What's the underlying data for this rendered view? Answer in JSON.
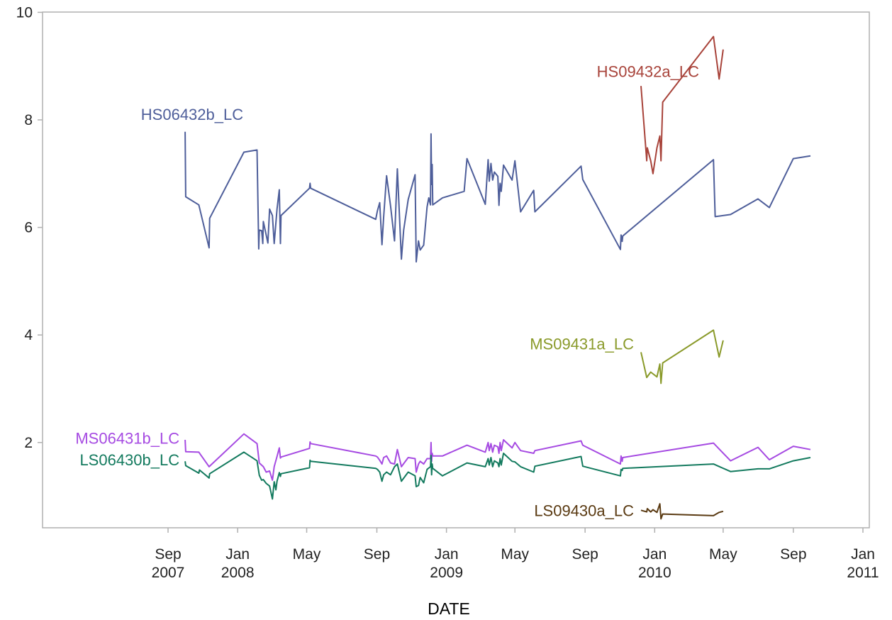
{
  "chart_data": {
    "type": "line",
    "title": "",
    "xlabel": "DATE",
    "ylabel": "",
    "xlim": [
      "2007-06-01",
      "2011-01-01"
    ],
    "ylim": [
      0,
      10
    ],
    "grid": false,
    "legend": "none",
    "x_ticks": [
      {
        "date": "2007-09-01",
        "line1": "Sep",
        "line2": "2007"
      },
      {
        "date": "2008-01-01",
        "line1": "Jan",
        "line2": "2008"
      },
      {
        "date": "2008-05-01",
        "line1": "May",
        "line2": ""
      },
      {
        "date": "2008-09-01",
        "line1": "Sep",
        "line2": ""
      },
      {
        "date": "2009-01-01",
        "line1": "Jan",
        "line2": "2009"
      },
      {
        "date": "2009-05-01",
        "line1": "May",
        "line2": ""
      },
      {
        "date": "2009-09-01",
        "line1": "Sep",
        "line2": ""
      },
      {
        "date": "2010-01-01",
        "line1": "Jan",
        "line2": "2010"
      },
      {
        "date": "2010-05-01",
        "line1": "May",
        "line2": ""
      },
      {
        "date": "2010-09-01",
        "line1": "Sep",
        "line2": ""
      },
      {
        "date": "2011-01-01",
        "line1": "Jan",
        "line2": "2011"
      }
    ],
    "y_ticks": [
      2,
      4,
      6,
      8,
      10
    ],
    "series": [
      {
        "name": "HS06432b_LC",
        "color": "#4e5e9a",
        "points": [
          [
            "2007-10-01",
            7.78
          ],
          [
            "2007-10-02",
            6.57
          ],
          [
            "2007-10-25",
            6.42
          ],
          [
            "2007-11-12",
            5.62
          ],
          [
            "2007-11-13",
            6.17
          ],
          [
            "2008-01-12",
            7.4
          ],
          [
            "2008-02-04",
            7.44
          ],
          [
            "2008-02-07",
            5.6
          ],
          [
            "2008-02-08",
            5.95
          ],
          [
            "2008-02-12",
            5.94
          ],
          [
            "2008-02-14",
            5.7
          ],
          [
            "2008-02-15",
            6.11
          ],
          [
            "2008-02-19",
            5.91
          ],
          [
            "2008-02-23",
            5.71
          ],
          [
            "2008-02-26",
            6.34
          ],
          [
            "2008-03-02",
            6.22
          ],
          [
            "2008-03-05",
            5.7
          ],
          [
            "2008-03-10",
            6.34
          ],
          [
            "2008-03-14",
            6.7
          ],
          [
            "2008-03-16",
            5.7
          ],
          [
            "2008-03-17",
            6.22
          ],
          [
            "2008-05-06",
            6.73
          ],
          [
            "2008-05-07",
            6.82
          ],
          [
            "2008-05-08",
            6.73
          ],
          [
            "2008-08-30",
            6.15
          ],
          [
            "2008-09-02",
            6.31
          ],
          [
            "2008-09-06",
            6.46
          ],
          [
            "2008-09-10",
            5.68
          ],
          [
            "2008-09-13",
            6.2
          ],
          [
            "2008-09-18",
            6.96
          ],
          [
            "2008-09-25",
            6.4
          ],
          [
            "2008-10-02",
            5.75
          ],
          [
            "2008-10-07",
            7.09
          ],
          [
            "2008-10-14",
            5.41
          ],
          [
            "2008-10-18",
            5.95
          ],
          [
            "2008-10-26",
            6.52
          ],
          [
            "2008-11-07",
            6.98
          ],
          [
            "2008-11-09",
            5.36
          ],
          [
            "2008-11-13",
            5.75
          ],
          [
            "2008-11-16",
            5.58
          ],
          [
            "2008-11-22",
            5.67
          ],
          [
            "2008-11-28",
            6.38
          ],
          [
            "2008-12-01",
            6.55
          ],
          [
            "2008-12-04",
            6.42
          ],
          [
            "2008-12-05",
            7.74
          ],
          [
            "2008-12-06",
            6.8
          ],
          [
            "2008-12-07",
            7.17
          ],
          [
            "2008-12-08",
            6.42
          ],
          [
            "2008-12-25",
            6.55
          ],
          [
            "2009-02-01",
            6.67
          ],
          [
            "2009-02-06",
            7.28
          ],
          [
            "2009-03-10",
            6.43
          ],
          [
            "2009-03-15",
            7.26
          ],
          [
            "2009-03-17",
            6.86
          ],
          [
            "2009-03-20",
            7.19
          ],
          [
            "2009-03-23",
            6.88
          ],
          [
            "2009-03-26",
            7.03
          ],
          [
            "2009-04-01",
            6.95
          ],
          [
            "2009-04-03",
            6.41
          ],
          [
            "2009-04-05",
            6.82
          ],
          [
            "2009-04-07",
            6.67
          ],
          [
            "2009-04-11",
            7.16
          ],
          [
            "2009-04-26",
            6.88
          ],
          [
            "2009-05-01",
            7.24
          ],
          [
            "2009-05-11",
            6.29
          ],
          [
            "2009-06-03",
            6.69
          ],
          [
            "2009-06-05",
            6.29
          ],
          [
            "2009-08-25",
            7.14
          ],
          [
            "2009-08-28",
            6.89
          ],
          [
            "2009-11-02",
            5.59
          ],
          [
            "2009-11-03",
            5.86
          ],
          [
            "2009-11-05",
            5.74
          ],
          [
            "2009-11-06",
            5.84
          ],
          [
            "2010-04-14",
            7.26
          ],
          [
            "2010-04-17",
            6.2
          ],
          [
            "2010-05-14",
            6.24
          ],
          [
            "2010-07-01",
            6.53
          ],
          [
            "2010-07-21",
            6.37
          ],
          [
            "2010-09-01",
            7.28
          ],
          [
            "2010-10-01",
            7.33
          ]
        ]
      },
      {
        "name": "HS09432a_LC",
        "color": "#a8433a",
        "points": [
          [
            "2009-12-08",
            8.63
          ],
          [
            "2009-12-18",
            7.24
          ],
          [
            "2009-12-19",
            7.48
          ],
          [
            "2009-12-25",
            7.24
          ],
          [
            "2009-12-29",
            7.0
          ],
          [
            "2010-01-05",
            7.48
          ],
          [
            "2010-01-10",
            7.7
          ],
          [
            "2010-01-12",
            7.24
          ],
          [
            "2010-01-15",
            8.33
          ],
          [
            "2010-04-14",
            9.55
          ],
          [
            "2010-04-24",
            8.76
          ],
          [
            "2010-05-01",
            9.31
          ]
        ]
      },
      {
        "name": "MS09431a_LC",
        "color": "#8a9a2a",
        "points": [
          [
            "2009-12-08",
            3.68
          ],
          [
            "2009-12-18",
            3.21
          ],
          [
            "2009-12-25",
            3.31
          ],
          [
            "2010-01-05",
            3.22
          ],
          [
            "2010-01-10",
            3.46
          ],
          [
            "2010-01-12",
            3.1
          ],
          [
            "2010-01-15",
            3.48
          ],
          [
            "2010-04-14",
            4.09
          ],
          [
            "2010-04-24",
            3.59
          ],
          [
            "2010-05-01",
            3.9
          ]
        ]
      },
      {
        "name": "MS06431b_LC",
        "color": "#a64be2",
        "points": [
          [
            "2007-10-01",
            2.05
          ],
          [
            "2007-10-02",
            1.83
          ],
          [
            "2007-10-25",
            1.82
          ],
          [
            "2007-11-12",
            1.55
          ],
          [
            "2008-01-12",
            2.16
          ],
          [
            "2008-02-04",
            1.98
          ],
          [
            "2008-02-08",
            1.62
          ],
          [
            "2008-02-15",
            1.55
          ],
          [
            "2008-02-20",
            1.45
          ],
          [
            "2008-02-26",
            1.47
          ],
          [
            "2008-03-02",
            1.3
          ],
          [
            "2008-03-05",
            1.55
          ],
          [
            "2008-03-10",
            1.74
          ],
          [
            "2008-03-14",
            1.9
          ],
          [
            "2008-03-16",
            1.71
          ],
          [
            "2008-03-17",
            1.73
          ],
          [
            "2008-05-06",
            1.89
          ],
          [
            "2008-05-07",
            2.01
          ],
          [
            "2008-05-08",
            1.98
          ],
          [
            "2008-08-30",
            1.75
          ],
          [
            "2008-09-02",
            1.73
          ],
          [
            "2008-09-06",
            1.67
          ],
          [
            "2008-09-10",
            1.6
          ],
          [
            "2008-09-13",
            1.72
          ],
          [
            "2008-09-18",
            1.75
          ],
          [
            "2008-09-25",
            1.62
          ],
          [
            "2008-10-02",
            1.6
          ],
          [
            "2008-10-07",
            1.87
          ],
          [
            "2008-10-14",
            1.55
          ],
          [
            "2008-10-26",
            1.72
          ],
          [
            "2008-11-07",
            1.7
          ],
          [
            "2008-11-09",
            1.45
          ],
          [
            "2008-11-13",
            1.6
          ],
          [
            "2008-11-16",
            1.65
          ],
          [
            "2008-11-22",
            1.6
          ],
          [
            "2008-11-28",
            1.7
          ],
          [
            "2008-12-04",
            1.7
          ],
          [
            "2008-12-05",
            2.0
          ],
          [
            "2008-12-06",
            1.65
          ],
          [
            "2008-12-07",
            1.8
          ],
          [
            "2008-12-08",
            1.75
          ],
          [
            "2008-12-25",
            1.75
          ],
          [
            "2009-02-06",
            1.95
          ],
          [
            "2009-03-10",
            1.82
          ],
          [
            "2009-03-15",
            2.0
          ],
          [
            "2009-03-17",
            1.85
          ],
          [
            "2009-03-20",
            1.98
          ],
          [
            "2009-03-23",
            1.82
          ],
          [
            "2009-03-26",
            1.95
          ],
          [
            "2009-04-01",
            1.92
          ],
          [
            "2009-04-03",
            1.8
          ],
          [
            "2009-04-05",
            2.0
          ],
          [
            "2009-04-07",
            1.85
          ],
          [
            "2009-04-11",
            2.05
          ],
          [
            "2009-04-26",
            1.9
          ],
          [
            "2009-05-01",
            2.0
          ],
          [
            "2009-05-11",
            1.85
          ],
          [
            "2009-06-03",
            1.8
          ],
          [
            "2009-06-05",
            1.85
          ],
          [
            "2009-08-25",
            2.03
          ],
          [
            "2009-08-28",
            1.95
          ],
          [
            "2009-11-02",
            1.6
          ],
          [
            "2009-11-03",
            1.75
          ],
          [
            "2009-11-05",
            1.65
          ],
          [
            "2009-11-06",
            1.72
          ],
          [
            "2010-04-14",
            1.99
          ],
          [
            "2010-05-14",
            1.66
          ],
          [
            "2010-07-01",
            1.91
          ],
          [
            "2010-07-21",
            1.68
          ],
          [
            "2010-09-01",
            1.93
          ],
          [
            "2010-10-01",
            1.87
          ]
        ]
      },
      {
        "name": "LS06430b_LC",
        "color": "#137a5e",
        "points": [
          [
            "2007-10-01",
            1.65
          ],
          [
            "2007-10-02",
            1.57
          ],
          [
            "2007-10-25",
            1.43
          ],
          [
            "2007-10-26",
            1.49
          ],
          [
            "2007-11-12",
            1.34
          ],
          [
            "2007-11-13",
            1.42
          ],
          [
            "2008-01-12",
            1.82
          ],
          [
            "2008-02-04",
            1.66
          ],
          [
            "2008-02-08",
            1.39
          ],
          [
            "2008-02-12",
            1.3
          ],
          [
            "2008-02-15",
            1.31
          ],
          [
            "2008-02-20",
            1.24
          ],
          [
            "2008-02-26",
            1.19
          ],
          [
            "2008-03-02",
            0.95
          ],
          [
            "2008-03-05",
            1.27
          ],
          [
            "2008-03-08",
            1.12
          ],
          [
            "2008-03-10",
            1.28
          ],
          [
            "2008-03-14",
            1.44
          ],
          [
            "2008-03-16",
            1.37
          ],
          [
            "2008-03-17",
            1.42
          ],
          [
            "2008-05-06",
            1.53
          ],
          [
            "2008-05-07",
            1.67
          ],
          [
            "2008-05-08",
            1.65
          ],
          [
            "2008-08-30",
            1.52
          ],
          [
            "2008-09-02",
            1.5
          ],
          [
            "2008-09-06",
            1.45
          ],
          [
            "2008-09-10",
            1.28
          ],
          [
            "2008-09-13",
            1.4
          ],
          [
            "2008-09-18",
            1.45
          ],
          [
            "2008-09-25",
            1.4
          ],
          [
            "2008-10-02",
            1.55
          ],
          [
            "2008-10-07",
            1.6
          ],
          [
            "2008-10-14",
            1.28
          ],
          [
            "2008-10-26",
            1.45
          ],
          [
            "2008-11-07",
            1.38
          ],
          [
            "2008-11-09",
            1.18
          ],
          [
            "2008-11-13",
            1.2
          ],
          [
            "2008-11-16",
            1.35
          ],
          [
            "2008-11-22",
            1.25
          ],
          [
            "2008-11-28",
            1.5
          ],
          [
            "2008-12-04",
            1.55
          ],
          [
            "2008-12-05",
            1.76
          ],
          [
            "2008-12-06",
            1.4
          ],
          [
            "2008-12-07",
            1.6
          ],
          [
            "2008-12-08",
            1.52
          ],
          [
            "2008-12-25",
            1.38
          ],
          [
            "2009-02-06",
            1.62
          ],
          [
            "2009-03-10",
            1.55
          ],
          [
            "2009-03-15",
            1.7
          ],
          [
            "2009-03-17",
            1.58
          ],
          [
            "2009-03-20",
            1.72
          ],
          [
            "2009-03-23",
            1.55
          ],
          [
            "2009-03-26",
            1.66
          ],
          [
            "2009-04-01",
            1.62
          ],
          [
            "2009-04-03",
            1.55
          ],
          [
            "2009-04-05",
            1.7
          ],
          [
            "2009-04-07",
            1.58
          ],
          [
            "2009-04-11",
            1.8
          ],
          [
            "2009-04-26",
            1.65
          ],
          [
            "2009-05-01",
            1.64
          ],
          [
            "2009-05-11",
            1.55
          ],
          [
            "2009-06-03",
            1.45
          ],
          [
            "2009-06-05",
            1.56
          ],
          [
            "2009-08-25",
            1.74
          ],
          [
            "2009-08-28",
            1.56
          ],
          [
            "2009-11-02",
            1.38
          ],
          [
            "2009-11-03",
            1.5
          ],
          [
            "2009-11-05",
            1.48
          ],
          [
            "2009-11-06",
            1.52
          ],
          [
            "2010-04-14",
            1.6
          ],
          [
            "2010-05-14",
            1.46
          ],
          [
            "2010-07-01",
            1.51
          ],
          [
            "2010-07-21",
            1.51
          ],
          [
            "2010-09-01",
            1.66
          ],
          [
            "2010-10-01",
            1.72
          ]
        ]
      },
      {
        "name": "LS09430a_LC",
        "color": "#5a3a12",
        "points": [
          [
            "2009-12-08",
            0.74
          ],
          [
            "2009-12-18",
            0.71
          ],
          [
            "2009-12-19",
            0.77
          ],
          [
            "2009-12-25",
            0.71
          ],
          [
            "2009-12-29",
            0.75
          ],
          [
            "2010-01-05",
            0.7
          ],
          [
            "2010-01-10",
            0.86
          ],
          [
            "2010-01-12",
            0.58
          ],
          [
            "2010-01-15",
            0.67
          ],
          [
            "2010-04-14",
            0.64
          ],
          [
            "2010-04-24",
            0.7
          ],
          [
            "2010-05-01",
            0.72
          ]
        ]
      }
    ]
  }
}
